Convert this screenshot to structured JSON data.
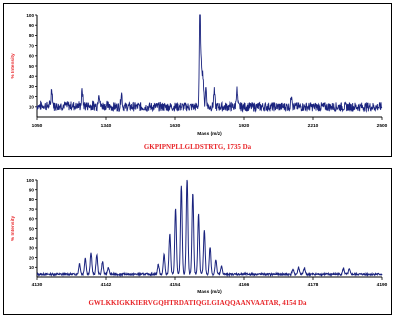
{
  "chart_data": [
    {
      "type": "line",
      "title": "GKPIPNPLLGLDSTRTG, 1735 Da",
      "xlabel": "Mass (m/z)",
      "ylabel": "% Intensity",
      "xlim": [
        1050,
        2500
      ],
      "ylim": [
        0,
        100
      ],
      "xticks": [
        1050,
        1340,
        1630,
        1920,
        2210,
        2500
      ],
      "yticks": [
        10,
        20,
        30,
        40,
        50,
        60,
        70,
        80,
        90,
        100
      ],
      "baseline": 10,
      "peaks": [
        {
          "x": 1112,
          "y": 17
        },
        {
          "x": 1240,
          "y": 15
        },
        {
          "x": 1310,
          "y": 14
        },
        {
          "x": 1405,
          "y": 14
        },
        {
          "x": 1735,
          "y": 99
        },
        {
          "x": 1742,
          "y": 36
        },
        {
          "x": 1748,
          "y": 28
        },
        {
          "x": 1760,
          "y": 19
        },
        {
          "x": 1795,
          "y": 15
        },
        {
          "x": 1890,
          "y": 17
        },
        {
          "x": 2120,
          "y": 13
        }
      ],
      "color": "#1a237e"
    },
    {
      "type": "line",
      "title": "GWLKKIGKKIERVGQHTRDATIQGLGIAQQAANVAATAR, 4154 Da",
      "xlabel": "Mass (m/z)",
      "ylabel": "% Intensity",
      "xlim": [
        4130,
        4190
      ],
      "ylim": [
        0,
        100
      ],
      "xticks": [
        4130,
        4142,
        4154,
        4166,
        4178,
        4190
      ],
      "yticks": [
        10,
        20,
        30,
        40,
        50,
        60,
        70,
        80,
        90,
        100
      ],
      "baseline": 3,
      "peaks": [
        {
          "x": 4137.4,
          "y": 11
        },
        {
          "x": 4138.4,
          "y": 17
        },
        {
          "x": 4139.4,
          "y": 22
        },
        {
          "x": 4140.4,
          "y": 20
        },
        {
          "x": 4141.4,
          "y": 13
        },
        {
          "x": 4142.4,
          "y": 7
        },
        {
          "x": 4151.1,
          "y": 10
        },
        {
          "x": 4152.1,
          "y": 20
        },
        {
          "x": 4153.1,
          "y": 42
        },
        {
          "x": 4154.1,
          "y": 68
        },
        {
          "x": 4155.1,
          "y": 92
        },
        {
          "x": 4156.1,
          "y": 100
        },
        {
          "x": 4157.1,
          "y": 84
        },
        {
          "x": 4158.1,
          "y": 62
        },
        {
          "x": 4159.1,
          "y": 45
        },
        {
          "x": 4160.1,
          "y": 28
        },
        {
          "x": 4161.1,
          "y": 15
        },
        {
          "x": 4162.1,
          "y": 8
        },
        {
          "x": 4174.5,
          "y": 5
        },
        {
          "x": 4175.5,
          "y": 7
        },
        {
          "x": 4176.5,
          "y": 6
        },
        {
          "x": 4183.3,
          "y": 6
        },
        {
          "x": 4184.3,
          "y": 5
        }
      ],
      "color": "#1a237e"
    }
  ]
}
